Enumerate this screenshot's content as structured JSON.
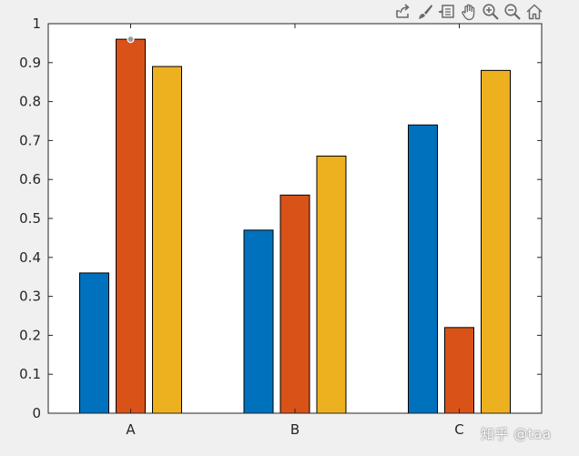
{
  "toolbar": {
    "tools": [
      {
        "name": "export-icon"
      },
      {
        "name": "brush-icon"
      },
      {
        "name": "datatip-icon"
      },
      {
        "name": "pan-icon"
      },
      {
        "name": "zoom-in-icon"
      },
      {
        "name": "zoom-out-icon"
      },
      {
        "name": "home-icon"
      }
    ]
  },
  "watermark": "知乎 @taa",
  "chart_data": {
    "type": "bar",
    "categories": [
      "A",
      "B",
      "C"
    ],
    "series": [
      {
        "values": [
          0.36,
          0.47,
          0.74
        ],
        "color": "#0072BD"
      },
      {
        "values": [
          0.96,
          0.56,
          0.22
        ],
        "color": "#D95319"
      },
      {
        "values": [
          0.89,
          0.66,
          0.88
        ],
        "color": "#EDB120"
      }
    ],
    "ylim": [
      0,
      1
    ],
    "yticks": [
      0,
      0.1,
      0.2,
      0.3,
      0.4,
      0.5,
      0.6,
      0.7,
      0.8,
      0.9,
      1
    ],
    "ytick_labels": [
      "0",
      "0.1",
      "0.2",
      "0.3",
      "0.4",
      "0.5",
      "0.6",
      "0.7",
      "0.8",
      "0.9",
      "1"
    ],
    "title": "",
    "xlabel": "",
    "ylabel": "",
    "grid": false,
    "marker": {
      "series": 1,
      "category": 0,
      "value": 0.96
    }
  }
}
